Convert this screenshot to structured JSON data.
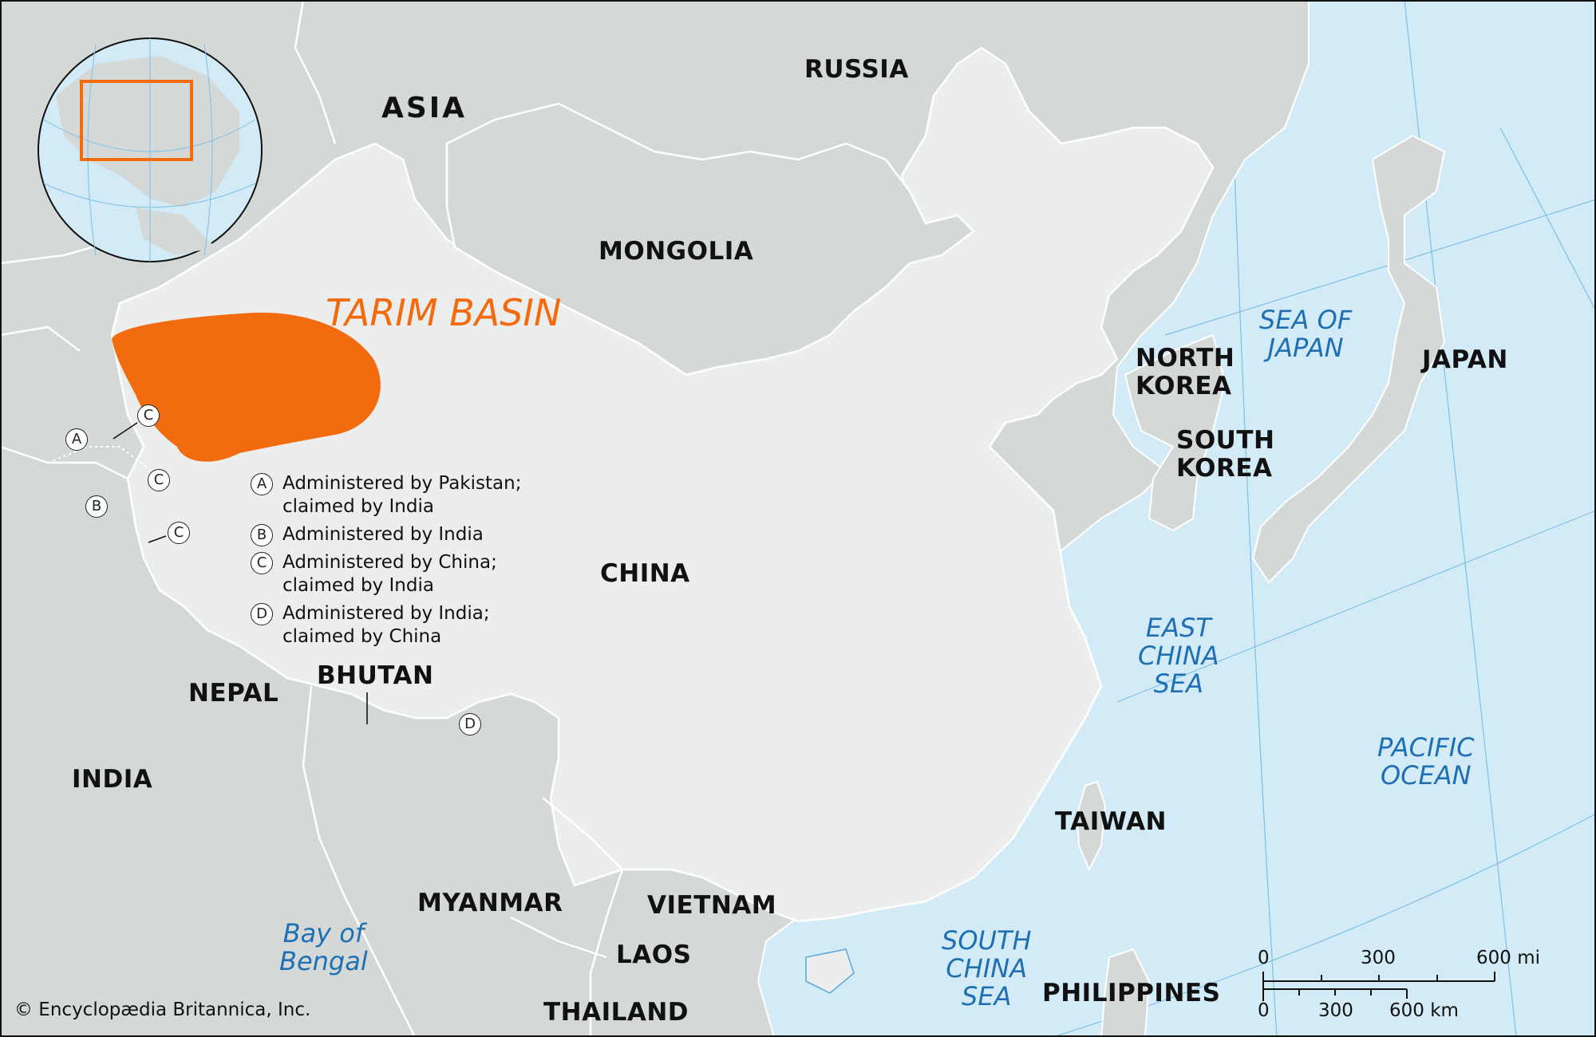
{
  "map": {
    "highlight_region": "TARIM BASIN",
    "countries": {
      "russia": "RUSSIA",
      "asia": "ASIA",
      "mongolia": "MONGOLIA",
      "china": "CHINA",
      "north_korea_line1": "NORTH",
      "north_korea_line2": "KOREA",
      "south_korea_line1": "SOUTH",
      "south_korea_line2": "KOREA",
      "japan": "JAPAN",
      "nepal": "NEPAL",
      "bhutan": "BHUTAN",
      "india": "INDIA",
      "taiwan": "TAIWAN",
      "myanmar": "MYANMAR",
      "vietnam": "VIETNAM",
      "laos": "LAOS",
      "thailand": "THAILAND",
      "philippines": "PHILIPPINES"
    },
    "water_bodies": {
      "sea_of_japan_line1": "SEA OF",
      "sea_of_japan_line2": "JAPAN",
      "east_china_sea_line1": "EAST",
      "east_china_sea_line2": "CHINA",
      "east_china_sea_line3": "SEA",
      "pacific_line1": "PACIFIC",
      "pacific_line2": "OCEAN",
      "south_china_sea_line1": "SOUTH",
      "south_china_sea_line2": "CHINA",
      "south_china_sea_line3": "SEA",
      "bay_of_bengal_line1": "Bay of",
      "bay_of_bengal_line2": "Bengal"
    },
    "markers": {
      "a": "A",
      "b": "B",
      "c": "C",
      "d": "D"
    },
    "legend": [
      {
        "letter": "A",
        "line1": "Administered by Pakistan;",
        "line2": "claimed by India"
      },
      {
        "letter": "B",
        "line1": "Administered by India",
        "line2": ""
      },
      {
        "letter": "C",
        "line1": "Administered by China;",
        "line2": "claimed by India"
      },
      {
        "letter": "D",
        "line1": "Administered by India;",
        "line2": "claimed by China"
      }
    ],
    "scale": {
      "mi_0": "0",
      "mi_300": "300",
      "mi_600": "600 mi",
      "km_0": "0",
      "km_300": "300",
      "km_600": "600 km"
    },
    "credit": "© Encyclopædia Britannica, Inc.",
    "colors": {
      "water": "#d3ebf7",
      "land_other": "#d4d9d8",
      "china": "#eceeee",
      "highlight": "#f26b0f",
      "water_text": "#1f6fb3",
      "border": "#ffffff",
      "coast": "#5aa7d8"
    }
  }
}
